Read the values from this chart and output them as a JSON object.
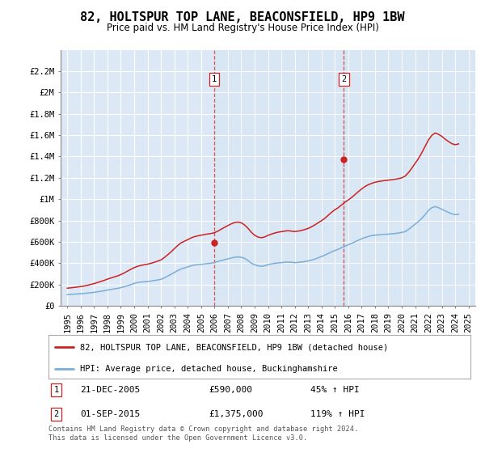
{
  "title": "82, HOLTSPUR TOP LANE, BEACONSFIELD, HP9 1BW",
  "subtitle": "Price paid vs. HM Land Registry's House Price Index (HPI)",
  "background_color": "#ffffff",
  "plot_bg_color": "#dce8f5",
  "grid_color": "#ffffff",
  "ylim": [
    0,
    2400000
  ],
  "yticks": [
    0,
    200000,
    400000,
    600000,
    800000,
    1000000,
    1200000,
    1400000,
    1600000,
    1800000,
    2000000,
    2200000
  ],
  "ytick_labels": [
    "£0",
    "£200K",
    "£400K",
    "£600K",
    "£800K",
    "£1M",
    "£1.2M",
    "£1.4M",
    "£1.6M",
    "£1.8M",
    "£2M",
    "£2.2M"
  ],
  "hpi_color": "#7aaed6",
  "price_color": "#cc2222",
  "marker1_x": 2005.97,
  "marker1_y": 590000,
  "marker1_label": "1",
  "marker1_date": "21-DEC-2005",
  "marker1_price": "£590,000",
  "marker1_hpi": "45% ↑ HPI",
  "marker2_x": 2015.67,
  "marker2_y": 1375000,
  "marker2_label": "2",
  "marker2_date": "01-SEP-2015",
  "marker2_price": "£1,375,000",
  "marker2_hpi": "119% ↑ HPI",
  "legend_line1": "82, HOLTSPUR TOP LANE, BEACONSFIELD, HP9 1BW (detached house)",
  "legend_line2": "HPI: Average price, detached house, Buckinghamshire",
  "footnote": "Contains HM Land Registry data © Crown copyright and database right 2024.\nThis data is licensed under the Open Government Licence v3.0.",
  "hpi_data_x": [
    1995,
    1995.25,
    1995.5,
    1995.75,
    1996,
    1996.25,
    1996.5,
    1996.75,
    1997,
    1997.25,
    1997.5,
    1997.75,
    1998,
    1998.25,
    1998.5,
    1998.75,
    1999,
    1999.25,
    1999.5,
    1999.75,
    2000,
    2000.25,
    2000.5,
    2000.75,
    2001,
    2001.25,
    2001.5,
    2001.75,
    2002,
    2002.25,
    2002.5,
    2002.75,
    2003,
    2003.25,
    2003.5,
    2003.75,
    2004,
    2004.25,
    2004.5,
    2004.75,
    2005,
    2005.25,
    2005.5,
    2005.75,
    2006,
    2006.25,
    2006.5,
    2006.75,
    2007,
    2007.25,
    2007.5,
    2007.75,
    2008,
    2008.25,
    2008.5,
    2008.75,
    2009,
    2009.25,
    2009.5,
    2009.75,
    2010,
    2010.25,
    2010.5,
    2010.75,
    2011,
    2011.25,
    2011.5,
    2011.75,
    2012,
    2012.25,
    2012.5,
    2012.75,
    2013,
    2013.25,
    2013.5,
    2013.75,
    2014,
    2014.25,
    2014.5,
    2014.75,
    2015,
    2015.25,
    2015.5,
    2015.75,
    2016,
    2016.25,
    2016.5,
    2016.75,
    2017,
    2017.25,
    2017.5,
    2017.75,
    2018,
    2018.25,
    2018.5,
    2018.75,
    2019,
    2019.25,
    2019.5,
    2019.75,
    2020,
    2020.25,
    2020.5,
    2020.75,
    2021,
    2021.25,
    2021.5,
    2021.75,
    2022,
    2022.25,
    2022.5,
    2022.75,
    2023,
    2023.25,
    2023.5,
    2023.75,
    2024,
    2024.25
  ],
  "hpi_data_y": [
    105000,
    107000,
    109000,
    111000,
    113000,
    116000,
    119000,
    122000,
    126000,
    131000,
    136000,
    141000,
    148000,
    153000,
    158000,
    163000,
    170000,
    178000,
    188000,
    198000,
    210000,
    218000,
    222000,
    225000,
    228000,
    232000,
    237000,
    242000,
    248000,
    262000,
    278000,
    295000,
    312000,
    330000,
    345000,
    355000,
    365000,
    375000,
    382000,
    385000,
    388000,
    392000,
    396000,
    400000,
    406000,
    415000,
    425000,
    432000,
    440000,
    448000,
    455000,
    458000,
    455000,
    445000,
    425000,
    400000,
    385000,
    375000,
    370000,
    375000,
    385000,
    392000,
    398000,
    402000,
    405000,
    408000,
    410000,
    408000,
    405000,
    407000,
    410000,
    415000,
    420000,
    428000,
    438000,
    450000,
    462000,
    475000,
    490000,
    505000,
    518000,
    530000,
    545000,
    558000,
    572000,
    585000,
    600000,
    615000,
    628000,
    640000,
    650000,
    658000,
    662000,
    665000,
    668000,
    670000,
    672000,
    675000,
    678000,
    682000,
    688000,
    695000,
    715000,
    740000,
    765000,
    790000,
    820000,
    855000,
    895000,
    920000,
    930000,
    920000,
    905000,
    890000,
    875000,
    862000,
    855000,
    858000
  ],
  "price_data_x": [
    1995,
    1995.25,
    1995.5,
    1995.75,
    1996,
    1996.25,
    1996.5,
    1996.75,
    1997,
    1997.25,
    1997.5,
    1997.75,
    1998,
    1998.25,
    1998.5,
    1998.75,
    1999,
    1999.25,
    1999.5,
    1999.75,
    2000,
    2000.25,
    2000.5,
    2000.75,
    2001,
    2001.25,
    2001.5,
    2001.75,
    2002,
    2002.25,
    2002.5,
    2002.75,
    2003,
    2003.25,
    2003.5,
    2003.75,
    2004,
    2004.25,
    2004.5,
    2004.75,
    2005,
    2005.25,
    2005.5,
    2005.75,
    2006,
    2006.25,
    2006.5,
    2006.75,
    2007,
    2007.25,
    2007.5,
    2007.75,
    2008,
    2008.25,
    2008.5,
    2008.75,
    2009,
    2009.25,
    2009.5,
    2009.75,
    2010,
    2010.25,
    2010.5,
    2010.75,
    2011,
    2011.25,
    2011.5,
    2011.75,
    2012,
    2012.25,
    2012.5,
    2012.75,
    2013,
    2013.25,
    2013.5,
    2013.75,
    2014,
    2014.25,
    2014.5,
    2014.75,
    2015,
    2015.25,
    2015.5,
    2015.75,
    2016,
    2016.25,
    2016.5,
    2016.75,
    2017,
    2017.25,
    2017.5,
    2017.75,
    2018,
    2018.25,
    2018.5,
    2018.75,
    2019,
    2019.25,
    2019.5,
    2019.75,
    2020,
    2020.25,
    2020.5,
    2020.75,
    2021,
    2021.25,
    2021.5,
    2021.75,
    2022,
    2022.25,
    2022.5,
    2022.75,
    2023,
    2023.25,
    2023.5,
    2023.75,
    2024,
    2024.25
  ],
  "price_data_y": [
    165000,
    168000,
    172000,
    176000,
    180000,
    185000,
    192000,
    200000,
    208000,
    218000,
    228000,
    238000,
    250000,
    260000,
    270000,
    280000,
    292000,
    308000,
    325000,
    342000,
    358000,
    370000,
    378000,
    385000,
    390000,
    398000,
    408000,
    418000,
    430000,
    452000,
    478000,
    505000,
    535000,
    565000,
    590000,
    605000,
    620000,
    636000,
    648000,
    655000,
    662000,
    668000,
    673000,
    678000,
    685000,
    700000,
    718000,
    735000,
    752000,
    768000,
    780000,
    785000,
    778000,
    758000,
    728000,
    690000,
    662000,
    645000,
    638000,
    645000,
    660000,
    672000,
    682000,
    690000,
    695000,
    700000,
    704000,
    700000,
    696000,
    700000,
    706000,
    715000,
    725000,
    740000,
    758000,
    778000,
    798000,
    820000,
    848000,
    876000,
    900000,
    920000,
    945000,
    970000,
    992000,
    1015000,
    1042000,
    1070000,
    1095000,
    1118000,
    1135000,
    1148000,
    1158000,
    1165000,
    1170000,
    1175000,
    1178000,
    1182000,
    1186000,
    1192000,
    1200000,
    1215000,
    1248000,
    1290000,
    1335000,
    1380000,
    1435000,
    1495000,
    1555000,
    1598000,
    1620000,
    1608000,
    1588000,
    1562000,
    1540000,
    1520000,
    1510000,
    1518000
  ],
  "xlim": [
    1994.5,
    2025.5
  ],
  "xticks": [
    1995,
    1996,
    1997,
    1998,
    1999,
    2000,
    2001,
    2002,
    2003,
    2004,
    2005,
    2006,
    2007,
    2008,
    2009,
    2010,
    2011,
    2012,
    2013,
    2014,
    2015,
    2016,
    2017,
    2018,
    2019,
    2020,
    2021,
    2022,
    2023,
    2024,
    2025
  ]
}
